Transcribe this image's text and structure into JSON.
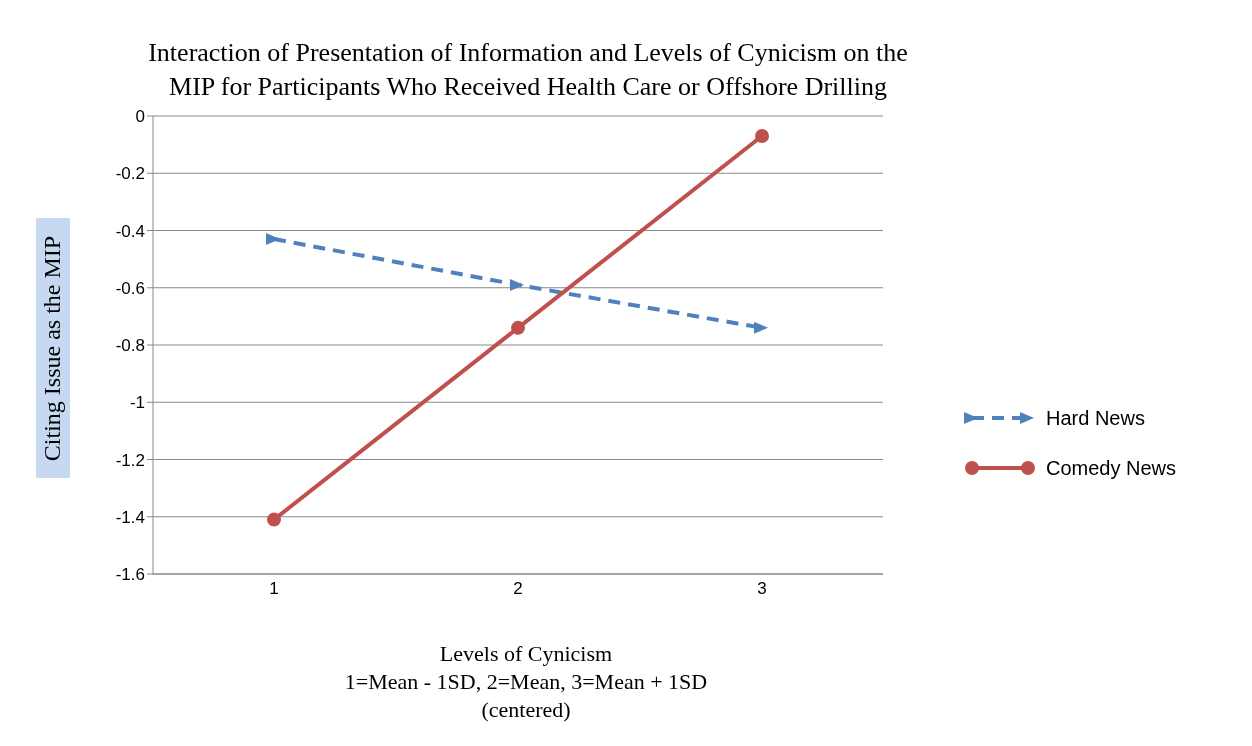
{
  "chart_data": {
    "type": "line",
    "title": "Interaction of Presentation of Information and Levels of Cynicism on the MIP for Participants Who Received Health Care or Offshore Drilling",
    "xlabel": "Levels of Cynicism\n1=Mean - 1SD, 2=Mean, 3=Mean + 1SD\n(centered)",
    "ylabel": "Citing Issue as the MIP",
    "categories": [
      "1",
      "2",
      "3"
    ],
    "series": [
      {
        "name": "Hard News",
        "color": "#4f81bd",
        "values": [
          -0.43,
          -0.59,
          -0.74
        ],
        "marker": "triangle",
        "line_style": "dashed"
      },
      {
        "name": "Comedy News",
        "color": "#c0504d",
        "values": [
          -1.41,
          -0.74,
          -0.07
        ],
        "marker": "circle",
        "line_style": "solid"
      }
    ],
    "ylim": [
      -1.6,
      0
    ],
    "yticks": [
      -1.6,
      -1.4,
      -1.2,
      -1,
      -0.8,
      -0.6,
      -0.4,
      -0.2,
      0
    ],
    "grid": "y",
    "legend": "right"
  }
}
